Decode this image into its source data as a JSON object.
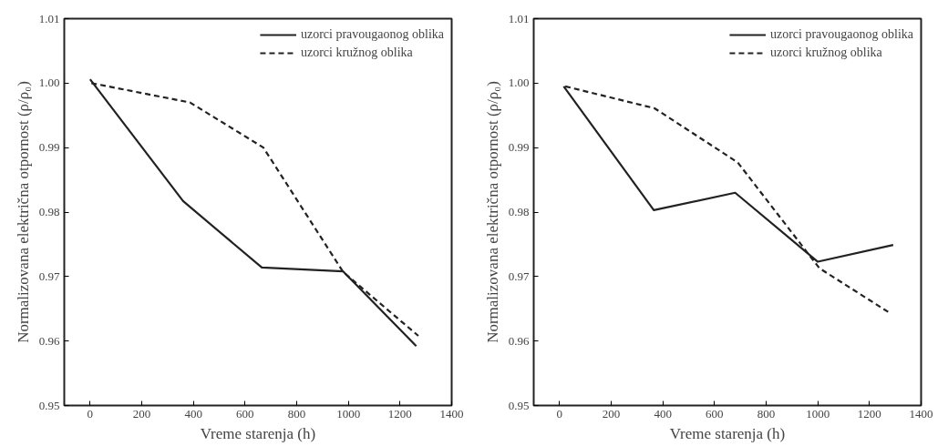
{
  "chart_data": [
    {
      "type": "line",
      "xlabel": "Vreme starenja (h)",
      "ylabel": "Normalizovana električna otpornost (ρ/ρ₀)",
      "xlim": [
        -100,
        1400
      ],
      "xticks": [
        0,
        200,
        400,
        600,
        800,
        1000,
        1200,
        1400
      ],
      "ylim": [
        0.95,
        1.01
      ],
      "yticks": [
        0.95,
        0.96,
        0.97,
        0.98,
        0.99,
        {
          "value": 1.0,
          "label": "1.00"
        },
        1.01
      ],
      "grid": false,
      "legend": "top right",
      "marker": "none",
      "series": [
        {
          "name": "uzorci pravougaonog oblika",
          "color": "#222222",
          "line_style": "solid",
          "x": [
            0,
            360,
            665,
            980,
            1263
          ],
          "values": [
            1.0006,
            0.9817,
            0.9714,
            0.9708,
            0.9592
          ]
        },
        {
          "name": "uzorci kružnog oblika",
          "color": "#222222",
          "line_style": "dashed",
          "x": [
            5,
            387,
            671,
            980,
            1271
          ],
          "values": [
            1.0,
            0.997,
            0.99,
            0.9707,
            0.9608
          ]
        }
      ]
    },
    {
      "type": "line",
      "xlabel": "Vreme starenja (h)",
      "ylabel": "Normalizovana električna otpornost (ρ/ρ₀)",
      "xlim": [
        -100,
        1400
      ],
      "xticks": [
        0,
        200,
        400,
        600,
        800,
        1000,
        1200,
        1400
      ],
      "ylim": [
        0.95,
        1.01
      ],
      "yticks": [
        0.95,
        0.96,
        0.97,
        0.98,
        0.99,
        {
          "value": 1.0,
          "label": "1.00"
        },
        1.01
      ],
      "grid": false,
      "legend": "top right",
      "marker": "none",
      "series": [
        {
          "name": "uzorci pravougaonog oblika",
          "color": "#222222",
          "line_style": "solid",
          "x": [
            16,
            365,
            680,
            1000,
            1292
          ],
          "values": [
            0.9995,
            0.9803,
            0.983,
            0.9723,
            0.9749
          ]
        },
        {
          "name": "uzorci kružnog oblika",
          "color": "#222222",
          "line_style": "dashed",
          "x": [
            22,
            368,
            690,
            1006,
            1273
          ],
          "values": [
            0.9995,
            0.9961,
            0.9877,
            0.9713,
            0.9645
          ]
        }
      ]
    }
  ]
}
